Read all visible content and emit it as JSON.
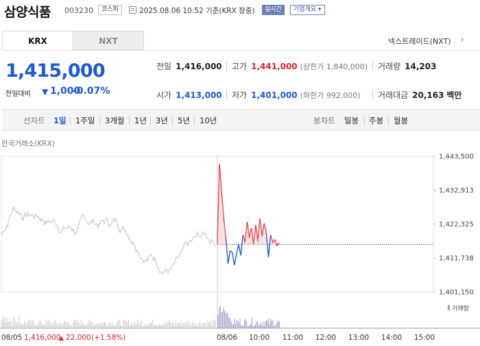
{
  "header": {
    "stock_name": "삼양식품",
    "stock_code": "003230",
    "market": "코스피",
    "timestamp": "2025.08.06 10:52 기준(KRX 장중)",
    "realtime_label": "실시간",
    "company_label": "기업개요",
    "company_chevron": "▾"
  },
  "exchange_tabs": [
    {
      "label": "KRX",
      "active": true
    },
    {
      "label": "NXT",
      "active": false
    }
  ],
  "nxt_link": "넥스트레이드(NXT)",
  "nxt_chevron": "›",
  "price": {
    "current": "1,415,000",
    "change_label": "전일대비",
    "change_arrow": "▼",
    "change_value": "1,000",
    "change_pct": "-0.07%"
  },
  "stats": {
    "prev_close": {
      "label": "전일",
      "value": "1,416,000"
    },
    "high": {
      "label": "고가",
      "value": "1,441,000",
      "sub": "(상한가 1,840,000)"
    },
    "volume": {
      "label": "거래량",
      "value": "14,203"
    },
    "open": {
      "label": "시가",
      "value": "1,413,000"
    },
    "low": {
      "label": "저가",
      "value": "1,401,000",
      "sub": "(하한가 992,000)"
    },
    "amount": {
      "label": "거래대금",
      "value": "20,163",
      "unit": "백만"
    }
  },
  "period_bar": {
    "line_label": "선차트",
    "line_periods": [
      "1일",
      "1주일",
      "3개월",
      "1년",
      "3년",
      "5년",
      "10년"
    ],
    "active_period": "1일",
    "candle_label": "봉차트",
    "candle_periods": [
      "일봉",
      "주봉",
      "월봉"
    ]
  },
  "source_label": "한국거래소(KRX)",
  "chart_data": {
    "type": "line",
    "ylim": [
      1401150,
      1443500
    ],
    "y_ticks": [
      "1,443,500",
      "1,432,913",
      "1,422,325",
      "1,411,738",
      "1,401,150"
    ],
    "x_ticks": [
      "08/06",
      "10:00",
      "11:00",
      "12:00",
      "13:00",
      "14:00",
      "15:00"
    ],
    "prev_close": 1416000,
    "volume_legend": "거래량",
    "prev_day": {
      "date": "08/05",
      "close": "1,416,000",
      "arrow": "▲",
      "change": "22,000",
      "pct": "(+1.58%)"
    },
    "colors": {
      "up": "#e0202f",
      "down": "#1c5bd1",
      "prev": "#c8c8c8",
      "volume": "#a79bc9"
    }
  }
}
